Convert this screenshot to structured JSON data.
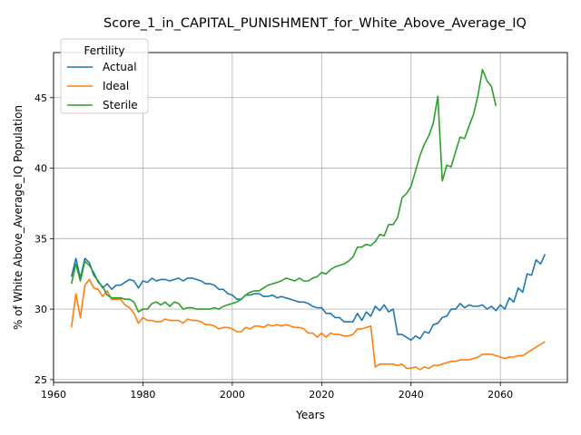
{
  "chart_data": {
    "type": "line",
    "title": "Score_1_in_CAPITAL_PUNISHMENT_for_White_Above_Average_IQ",
    "xlabel": "Years",
    "ylabel": "% of White Above_Average_IQ Population",
    "xlim": [
      1960,
      2075
    ],
    "ylim": [
      24.8,
      48.2
    ],
    "xticks": [
      1960,
      1980,
      2000,
      2020,
      2040,
      2060
    ],
    "yticks": [
      25,
      30,
      35,
      40,
      45
    ],
    "grid": true,
    "legend": {
      "title": "Fertility",
      "placement": "top-left"
    },
    "series": [
      {
        "name": "Actual",
        "color": "#1f77b4",
        "points": [
          [
            1964,
            32.3
          ],
          [
            1965,
            33.6
          ],
          [
            1966,
            32.2
          ],
          [
            1967,
            33.6
          ],
          [
            1968,
            33.3
          ],
          [
            1969,
            32.4
          ],
          [
            1970,
            32.0
          ],
          [
            1971,
            31.5
          ],
          [
            1972,
            31.8
          ],
          [
            1973,
            31.4
          ],
          [
            1974,
            31.7
          ],
          [
            1975,
            31.7
          ],
          [
            1976,
            31.9
          ],
          [
            1977,
            32.1
          ],
          [
            1978,
            32.0
          ],
          [
            1979,
            31.5
          ],
          [
            1980,
            32.0
          ],
          [
            1981,
            31.9
          ],
          [
            1982,
            32.2
          ],
          [
            1983,
            32.0
          ],
          [
            1984,
            32.1
          ],
          [
            1985,
            32.1
          ],
          [
            1986,
            32.0
          ],
          [
            1987,
            32.1
          ],
          [
            1988,
            32.2
          ],
          [
            1989,
            32.0
          ],
          [
            1990,
            32.2
          ],
          [
            1991,
            32.2
          ],
          [
            1992,
            32.1
          ],
          [
            1993,
            32.0
          ],
          [
            1994,
            31.8
          ],
          [
            1995,
            31.8
          ],
          [
            1996,
            31.7
          ],
          [
            1997,
            31.4
          ],
          [
            1998,
            31.4
          ],
          [
            1999,
            31.1
          ],
          [
            2000,
            31.0
          ],
          [
            2001,
            30.7
          ],
          [
            2002,
            30.7
          ],
          [
            2003,
            31.0
          ],
          [
            2004,
            31.0
          ],
          [
            2005,
            31.1
          ],
          [
            2006,
            31.1
          ],
          [
            2007,
            30.9
          ],
          [
            2008,
            30.9
          ],
          [
            2009,
            31.0
          ],
          [
            2010,
            30.8
          ],
          [
            2011,
            30.9
          ],
          [
            2012,
            30.8
          ],
          [
            2013,
            30.7
          ],
          [
            2014,
            30.6
          ],
          [
            2015,
            30.5
          ],
          [
            2016,
            30.5
          ],
          [
            2017,
            30.4
          ],
          [
            2018,
            30.2
          ],
          [
            2019,
            30.1
          ],
          [
            2020,
            30.1
          ],
          [
            2021,
            29.7
          ],
          [
            2022,
            29.7
          ],
          [
            2023,
            29.4
          ],
          [
            2024,
            29.4
          ],
          [
            2025,
            29.1
          ],
          [
            2026,
            29.1
          ],
          [
            2027,
            29.1
          ],
          [
            2028,
            29.7
          ],
          [
            2029,
            29.2
          ],
          [
            2030,
            29.8
          ],
          [
            2031,
            29.5
          ],
          [
            2032,
            30.2
          ],
          [
            2033,
            29.9
          ],
          [
            2034,
            30.3
          ],
          [
            2035,
            29.8
          ],
          [
            2036,
            30.0
          ],
          [
            2037,
            28.2
          ],
          [
            2038,
            28.2
          ],
          [
            2039,
            28.0
          ],
          [
            2040,
            27.8
          ],
          [
            2041,
            28.1
          ],
          [
            2042,
            27.9
          ],
          [
            2043,
            28.4
          ],
          [
            2044,
            28.3
          ],
          [
            2045,
            28.9
          ],
          [
            2046,
            29.0
          ],
          [
            2047,
            29.4
          ],
          [
            2048,
            29.5
          ],
          [
            2049,
            30.0
          ],
          [
            2050,
            30.0
          ],
          [
            2051,
            30.4
          ],
          [
            2052,
            30.1
          ],
          [
            2053,
            30.3
          ],
          [
            2054,
            30.2
          ],
          [
            2055,
            30.2
          ],
          [
            2056,
            30.3
          ],
          [
            2057,
            30.0
          ],
          [
            2058,
            30.2
          ],
          [
            2059,
            29.9
          ],
          [
            2060,
            30.3
          ],
          [
            2061,
            30.0
          ],
          [
            2062,
            30.8
          ],
          [
            2063,
            30.5
          ],
          [
            2064,
            31.5
          ],
          [
            2065,
            31.2
          ],
          [
            2066,
            32.5
          ],
          [
            2067,
            32.4
          ],
          [
            2068,
            33.5
          ],
          [
            2069,
            33.2
          ],
          [
            2070,
            33.9
          ]
        ]
      },
      {
        "name": "Ideal",
        "color": "#ff7f0e",
        "points": [
          [
            1964,
            28.7
          ],
          [
            1965,
            31.1
          ],
          [
            1966,
            29.4
          ],
          [
            1967,
            31.7
          ],
          [
            1968,
            32.1
          ],
          [
            1969,
            31.5
          ],
          [
            1970,
            31.4
          ],
          [
            1971,
            30.9
          ],
          [
            1972,
            31.3
          ],
          [
            1973,
            30.7
          ],
          [
            1974,
            30.7
          ],
          [
            1975,
            30.7
          ],
          [
            1976,
            30.3
          ],
          [
            1977,
            30.1
          ],
          [
            1978,
            29.7
          ],
          [
            1979,
            29.0
          ],
          [
            1980,
            29.4
          ],
          [
            1981,
            29.2
          ],
          [
            1982,
            29.2
          ],
          [
            1983,
            29.1
          ],
          [
            1984,
            29.1
          ],
          [
            1985,
            29.3
          ],
          [
            1986,
            29.2
          ],
          [
            1987,
            29.2
          ],
          [
            1988,
            29.2
          ],
          [
            1989,
            29.0
          ],
          [
            1990,
            29.3
          ],
          [
            1991,
            29.2
          ],
          [
            1992,
            29.2
          ],
          [
            1993,
            29.1
          ],
          [
            1994,
            28.9
          ],
          [
            1995,
            28.9
          ],
          [
            1996,
            28.8
          ],
          [
            1997,
            28.6
          ],
          [
            1998,
            28.7
          ],
          [
            1999,
            28.7
          ],
          [
            2000,
            28.6
          ],
          [
            2001,
            28.4
          ],
          [
            2002,
            28.4
          ],
          [
            2003,
            28.7
          ],
          [
            2004,
            28.6
          ],
          [
            2005,
            28.8
          ],
          [
            2006,
            28.8
          ],
          [
            2007,
            28.7
          ],
          [
            2008,
            28.9
          ],
          [
            2009,
            28.8
          ],
          [
            2010,
            28.9
          ],
          [
            2011,
            28.8
          ],
          [
            2012,
            28.9
          ],
          [
            2013,
            28.8
          ],
          [
            2014,
            28.7
          ],
          [
            2015,
            28.7
          ],
          [
            2016,
            28.6
          ],
          [
            2017,
            28.3
          ],
          [
            2018,
            28.3
          ],
          [
            2019,
            28.0
          ],
          [
            2020,
            28.3
          ],
          [
            2021,
            28.0
          ],
          [
            2022,
            28.3
          ],
          [
            2023,
            28.2
          ],
          [
            2024,
            28.2
          ],
          [
            2025,
            28.1
          ],
          [
            2026,
            28.1
          ],
          [
            2027,
            28.2
          ],
          [
            2028,
            28.6
          ],
          [
            2029,
            28.6
          ],
          [
            2030,
            28.7
          ],
          [
            2031,
            28.8
          ],
          [
            2032,
            25.9
          ],
          [
            2033,
            26.1
          ],
          [
            2034,
            26.1
          ],
          [
            2035,
            26.1
          ],
          [
            2036,
            26.1
          ],
          [
            2037,
            26.0
          ],
          [
            2038,
            26.1
          ],
          [
            2039,
            25.8
          ],
          [
            2040,
            25.8
          ],
          [
            2041,
            25.9
          ],
          [
            2042,
            25.7
          ],
          [
            2043,
            25.9
          ],
          [
            2044,
            25.8
          ],
          [
            2045,
            26.0
          ],
          [
            2046,
            26.0
          ],
          [
            2047,
            26.1
          ],
          [
            2048,
            26.2
          ],
          [
            2049,
            26.3
          ],
          [
            2050,
            26.3
          ],
          [
            2051,
            26.4
          ],
          [
            2052,
            26.4
          ],
          [
            2053,
            26.4
          ],
          [
            2054,
            26.5
          ],
          [
            2055,
            26.6
          ],
          [
            2056,
            26.8
          ],
          [
            2057,
            26.8
          ],
          [
            2058,
            26.8
          ],
          [
            2059,
            26.7
          ],
          [
            2060,
            26.6
          ],
          [
            2061,
            26.5
          ],
          [
            2062,
            26.6
          ],
          [
            2063,
            26.6
          ],
          [
            2064,
            26.7
          ],
          [
            2065,
            26.7
          ],
          [
            2066,
            26.9
          ],
          [
            2067,
            27.1
          ],
          [
            2068,
            27.3
          ],
          [
            2069,
            27.5
          ],
          [
            2070,
            27.7
          ]
        ]
      },
      {
        "name": "Sterile",
        "color": "#2ca02c",
        "points": [
          [
            1964,
            31.8
          ],
          [
            1965,
            33.2
          ],
          [
            1966,
            32.0
          ],
          [
            1967,
            33.4
          ],
          [
            1968,
            33.1
          ],
          [
            1969,
            32.6
          ],
          [
            1970,
            31.9
          ],
          [
            1971,
            31.6
          ],
          [
            1972,
            31.0
          ],
          [
            1973,
            30.8
          ],
          [
            1974,
            30.8
          ],
          [
            1975,
            30.8
          ],
          [
            1976,
            30.7
          ],
          [
            1977,
            30.7
          ],
          [
            1978,
            30.5
          ],
          [
            1979,
            29.8
          ],
          [
            1980,
            30.0
          ],
          [
            1981,
            30.0
          ],
          [
            1982,
            30.4
          ],
          [
            1983,
            30.5
          ],
          [
            1984,
            30.3
          ],
          [
            1985,
            30.5
          ],
          [
            1986,
            30.2
          ],
          [
            1987,
            30.5
          ],
          [
            1988,
            30.4
          ],
          [
            1989,
            30.0
          ],
          [
            1990,
            30.1
          ],
          [
            1991,
            30.1
          ],
          [
            1992,
            30.0
          ],
          [
            1993,
            30.0
          ],
          [
            1994,
            30.0
          ],
          [
            1995,
            30.0
          ],
          [
            1996,
            30.1
          ],
          [
            1997,
            30.0
          ],
          [
            1998,
            30.2
          ],
          [
            1999,
            30.3
          ],
          [
            2000,
            30.4
          ],
          [
            2001,
            30.5
          ],
          [
            2002,
            30.7
          ],
          [
            2003,
            31.0
          ],
          [
            2004,
            31.2
          ],
          [
            2005,
            31.3
          ],
          [
            2006,
            31.3
          ],
          [
            2007,
            31.5
          ],
          [
            2008,
            31.7
          ],
          [
            2009,
            31.8
          ],
          [
            2010,
            31.9
          ],
          [
            2011,
            32.0
          ],
          [
            2012,
            32.2
          ],
          [
            2013,
            32.1
          ],
          [
            2014,
            32.0
          ],
          [
            2015,
            32.2
          ],
          [
            2016,
            32.0
          ],
          [
            2017,
            32.0
          ],
          [
            2018,
            32.2
          ],
          [
            2019,
            32.3
          ],
          [
            2020,
            32.6
          ],
          [
            2021,
            32.5
          ],
          [
            2022,
            32.8
          ],
          [
            2023,
            33.0
          ],
          [
            2024,
            33.1
          ],
          [
            2025,
            33.2
          ],
          [
            2026,
            33.4
          ],
          [
            2027,
            33.7
          ],
          [
            2028,
            34.4
          ],
          [
            2029,
            34.4
          ],
          [
            2030,
            34.6
          ],
          [
            2031,
            34.5
          ],
          [
            2032,
            34.8
          ],
          [
            2033,
            35.3
          ],
          [
            2034,
            35.2
          ],
          [
            2035,
            36.0
          ],
          [
            2036,
            36.0
          ],
          [
            2037,
            36.5
          ],
          [
            2038,
            37.9
          ],
          [
            2039,
            38.2
          ],
          [
            2040,
            38.7
          ],
          [
            2041,
            39.8
          ],
          [
            2042,
            40.9
          ],
          [
            2043,
            41.7
          ],
          [
            2044,
            42.3
          ],
          [
            2045,
            43.2
          ],
          [
            2046,
            45.1
          ],
          [
            2047,
            39.1
          ],
          [
            2048,
            40.2
          ],
          [
            2049,
            40.1
          ],
          [
            2050,
            41.2
          ],
          [
            2051,
            42.2
          ],
          [
            2052,
            42.1
          ],
          [
            2053,
            43.0
          ],
          [
            2054,
            43.8
          ],
          [
            2055,
            45.2
          ],
          [
            2056,
            47.0
          ],
          [
            2057,
            46.2
          ],
          [
            2058,
            45.8
          ],
          [
            2059,
            44.4
          ]
        ]
      }
    ]
  }
}
